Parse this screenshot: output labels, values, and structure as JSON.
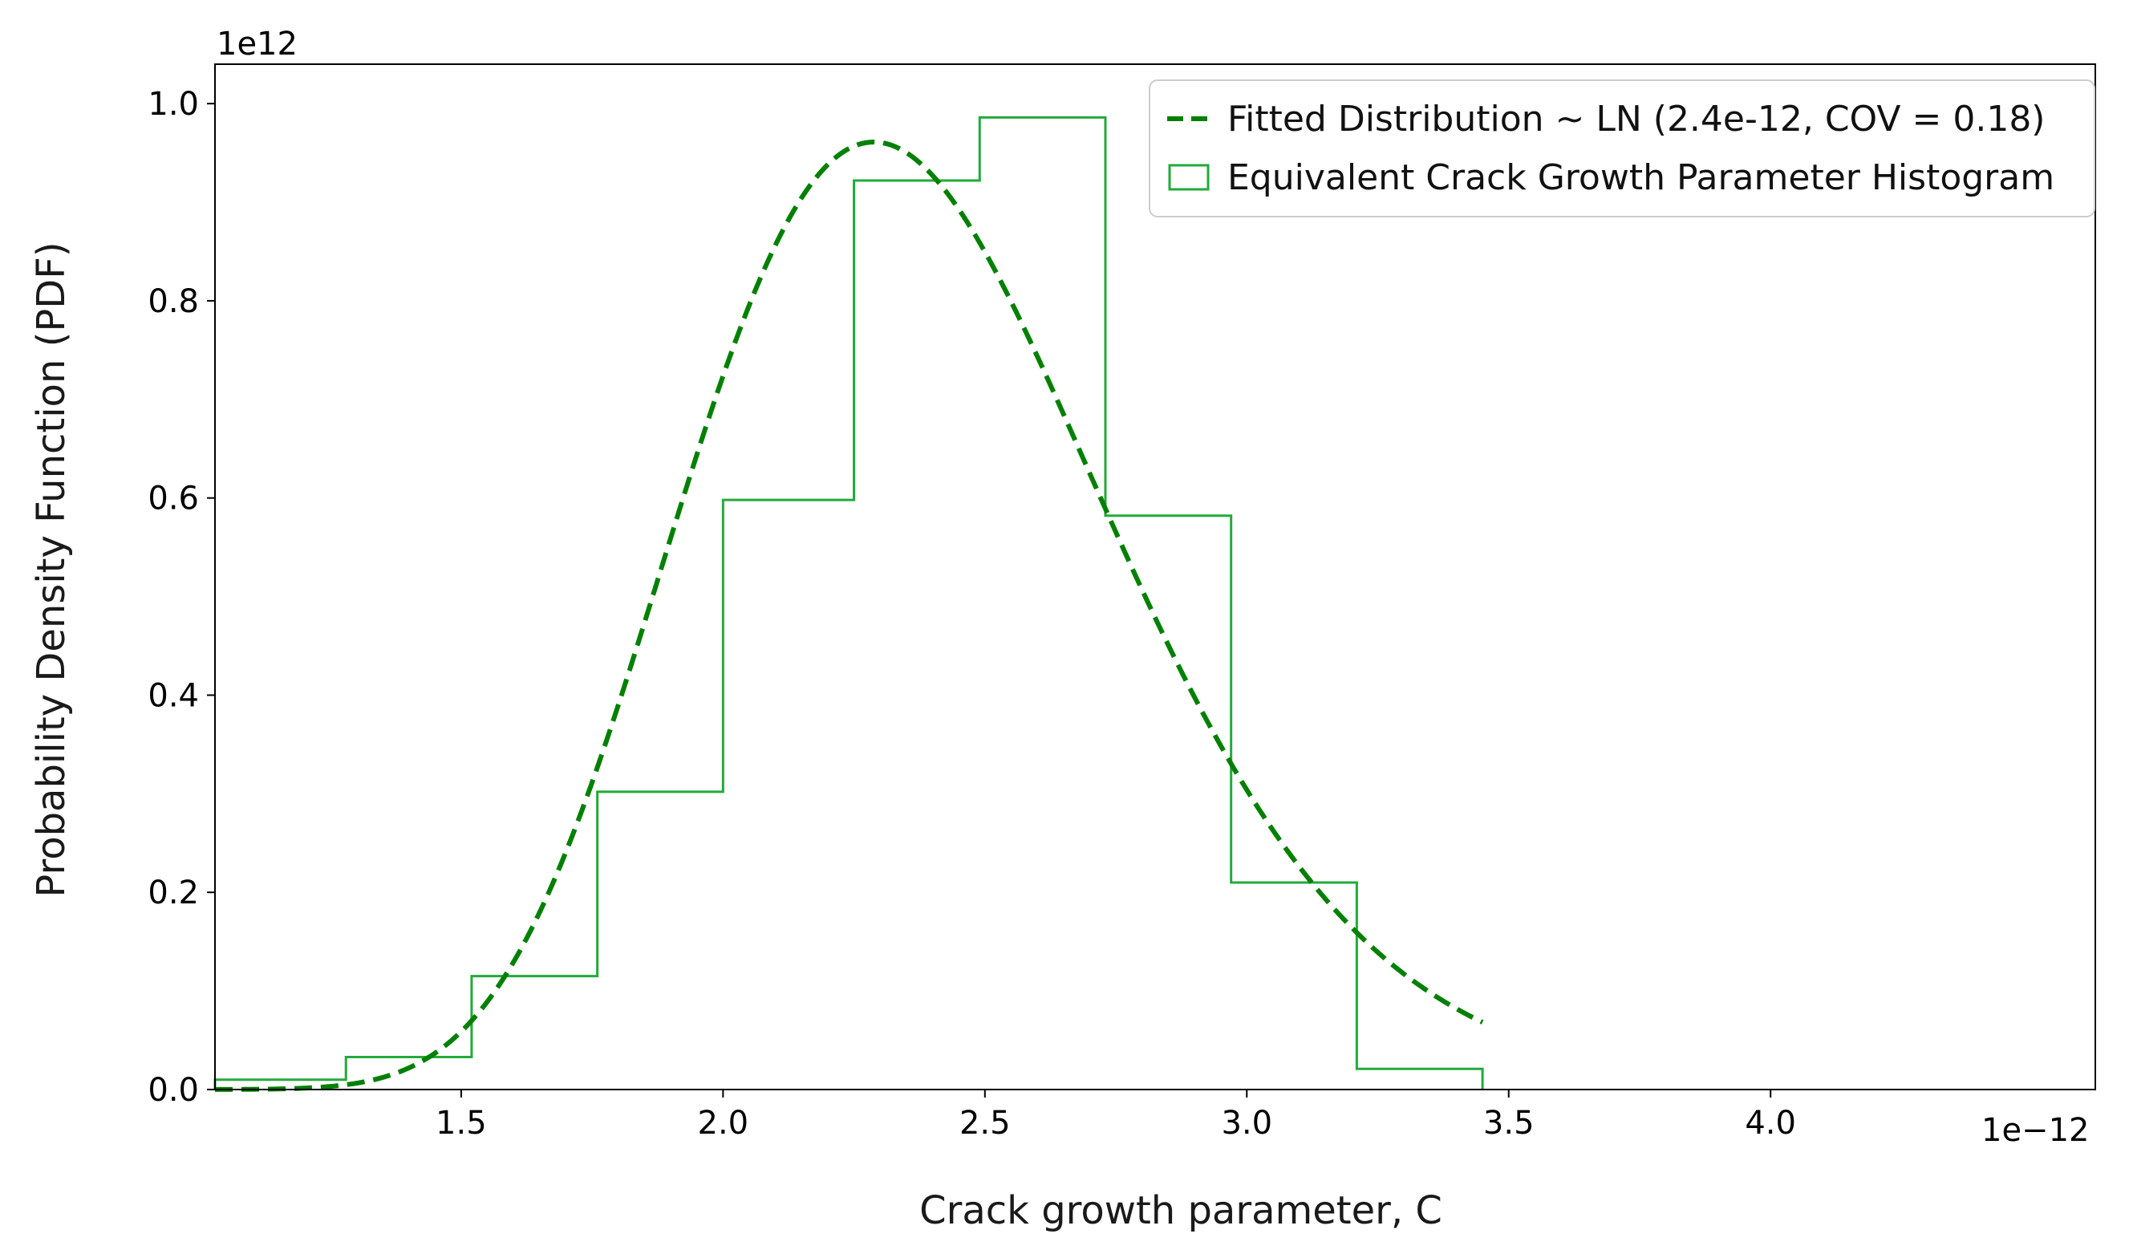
{
  "chart_data": {
    "type": "line",
    "xlabel": "Crack growth parameter, C",
    "ylabel": "Probability Density Function (PDF)",
    "x_offset_label": "1e−12",
    "y_offset_label": "1e12",
    "xlim": [
      1.03,
      4.62
    ],
    "ylim": [
      0.0,
      1.04
    ],
    "x_ticks": [
      1.5,
      2.0,
      2.5,
      3.0,
      3.5,
      4.0
    ],
    "x_tick_labels": [
      "1.5",
      "2.0",
      "2.5",
      "3.0",
      "3.5",
      "4.0"
    ],
    "y_ticks": [
      0.0,
      0.2,
      0.4,
      0.6,
      0.8,
      1.0
    ],
    "y_tick_labels": [
      "0.0",
      "0.2",
      "0.4",
      "0.6",
      "0.8",
      "1.0"
    ],
    "grid": false,
    "legend_position": "top-right",
    "series": [
      {
        "name": "Fitted Distribution ~ LN (2.4e-12, COV = 0.18)",
        "kind": "line",
        "style": "dashed",
        "color": "#008000",
        "distribution": "lognormal",
        "mean": 2.4,
        "cov": 0.18,
        "x_range": [
          1.03,
          3.45
        ]
      },
      {
        "name": "Equivalent Crack Growth Parameter Histogram",
        "kind": "step-histogram",
        "color": "#22aa3a",
        "bin_edges": [
          1.03,
          1.28,
          1.52,
          1.76,
          2.0,
          2.25,
          2.49,
          2.73,
          2.97,
          3.21,
          3.45
        ],
        "values": [
          0.01,
          0.033,
          0.115,
          0.302,
          0.598,
          0.922,
          0.986,
          0.582,
          0.21,
          0.021
        ]
      }
    ]
  }
}
